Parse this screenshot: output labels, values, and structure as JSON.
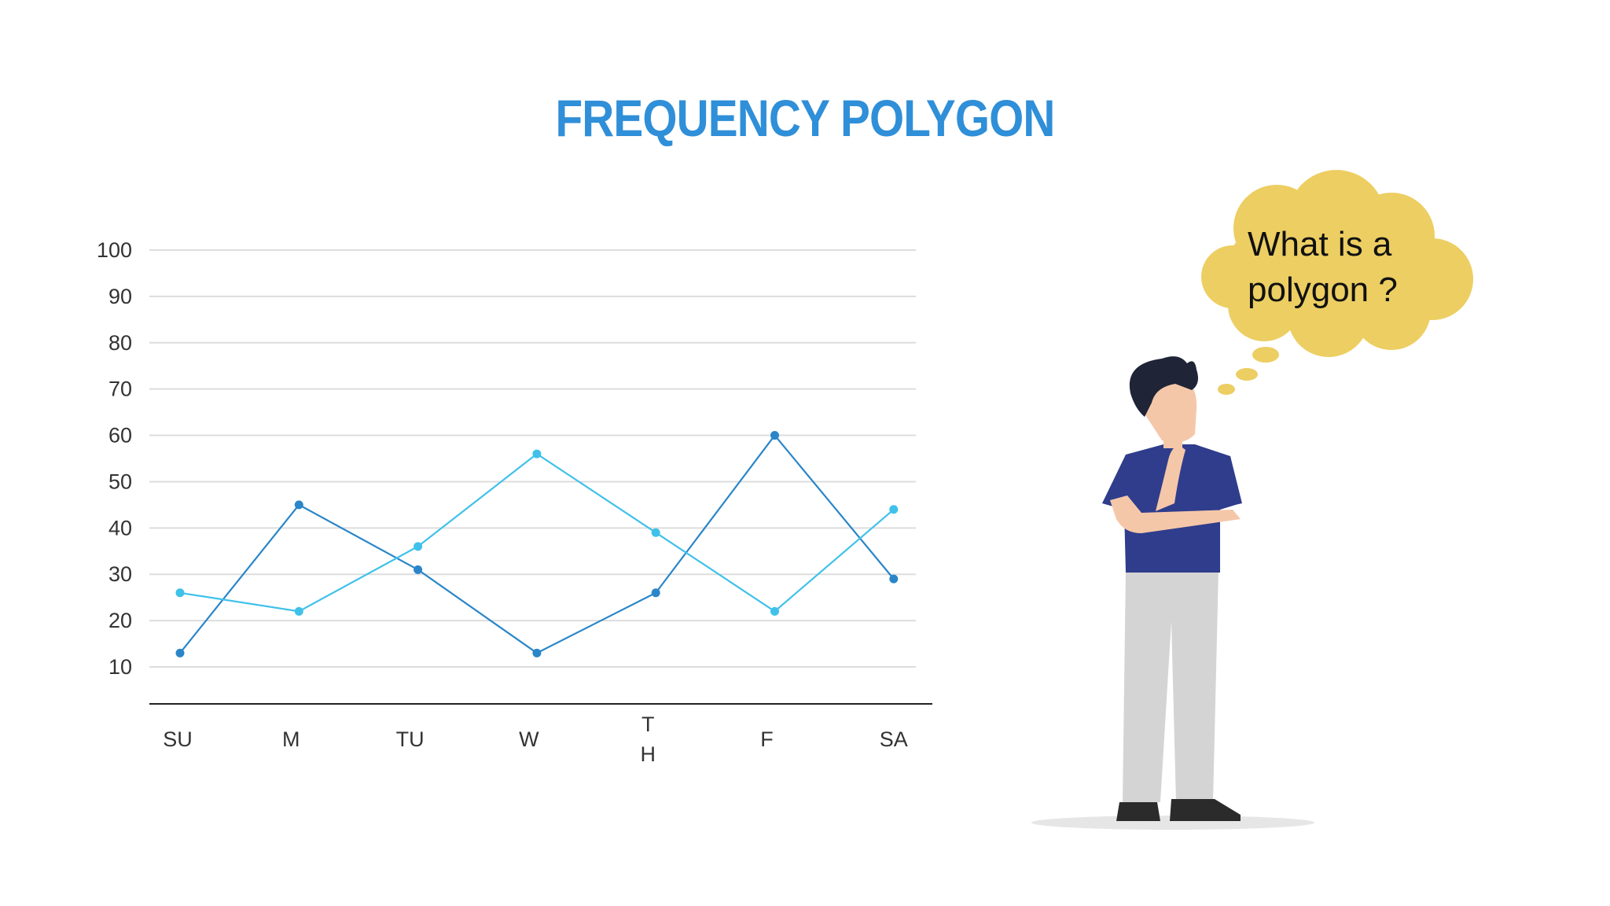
{
  "title": "FREQUENCY POLYGON",
  "thought_bubble": {
    "line1": "What is a",
    "line2": "polygon ?"
  },
  "colors": {
    "title": "#2f8fd8",
    "series_dark": "#2a86c8",
    "series_light": "#3fc1ea",
    "bubble": "#ecce62",
    "grid": "#dddddd",
    "axis": "#222222"
  },
  "chart_data": {
    "type": "line",
    "title": "FREQUENCY POLYGON",
    "xlabel": "",
    "ylabel": "",
    "categories": [
      "SU",
      "M",
      "TU",
      "W",
      "TH",
      "F",
      "SA"
    ],
    "category_display": [
      [
        "SU"
      ],
      [
        "M"
      ],
      [
        "TU"
      ],
      [
        "W"
      ],
      [
        "T",
        "H"
      ],
      [
        "F"
      ],
      [
        "SA"
      ]
    ],
    "yticks": [
      10,
      20,
      30,
      40,
      50,
      60,
      70,
      80,
      90,
      100
    ],
    "ylim": [
      0,
      100
    ],
    "grid": true,
    "legend": "none",
    "series": [
      {
        "color": "#2a86c8",
        "values": [
          13,
          45,
          31,
          13,
          26,
          60,
          29
        ]
      },
      {
        "color": "#3fc1ea",
        "values": [
          26,
          22,
          36,
          56,
          39,
          22,
          44
        ]
      }
    ]
  }
}
